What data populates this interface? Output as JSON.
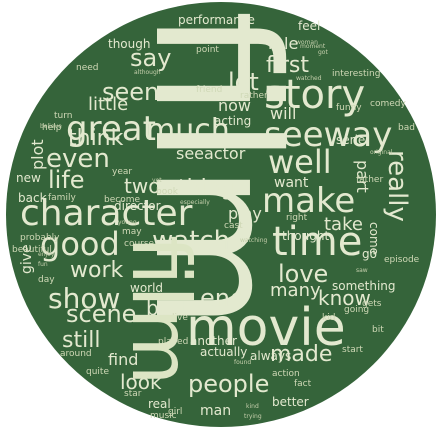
{
  "cloud": {
    "background_color": "#35643a",
    "word_color": "#e3e9cf",
    "words": {
      "film_large": "film",
      "film_mid": "film",
      "movie": "movie",
      "character": "character",
      "time": "time",
      "story": "story",
      "seeway": "seeway",
      "great": "great",
      "much": "much",
      "good": "good",
      "make": "make",
      "really": "really",
      "well": "well",
      "watch": "watch",
      "show": "show",
      "people": "people",
      "even": "even",
      "think": "think",
      "seen": "seen",
      "first": "first",
      "say": "say",
      "lot": "lot",
      "love": "love",
      "life": "life",
      "thing": "thing",
      "scene": "scene",
      "still": "still",
      "work": "work",
      "end": "end",
      "best": "best",
      "made": "made",
      "look": "look",
      "know": "know",
      "many": "many",
      "two": "two",
      "will": "will",
      "take": "take",
      "part": "part",
      "plot": "plot",
      "little": "little",
      "role": "role",
      "now": "now",
      "seeactor": "seeactor",
      "play": "play",
      "want": "want",
      "find": "find",
      "man": "man",
      "give": "give",
      "performance": "performance",
      "come": "come",
      "director": "director",
      "acting": "acting",
      "world": "world",
      "another": "another",
      "always": "always",
      "something": "something",
      "feel": "feel",
      "though": "though",
      "better": "better",
      "actually": "actually",
      "interesting": "interesting",
      "point": "point",
      "friend": "friend",
      "back": "back",
      "family": "family",
      "real": "real",
      "new": "new",
      "cast": "cast",
      "book": "book",
      "year": "year",
      "going": "going",
      "may": "may",
      "course": "course",
      "funny": "funny",
      "episode": "episode",
      "series": "serie",
      "comedy": "comedy",
      "kid": "kid",
      "start": "start",
      "fact": "fact",
      "action": "action",
      "star": "star",
      "quite": "quite",
      "become": "become",
      "right": "right",
      "thought": "thought",
      "especially": "especially",
      "turn": "turn",
      "need": "need",
      "help": "help",
      "live": "live",
      "played": "played",
      "day": "day",
      "around": "around",
      "probably": "probably",
      "beautiful": "beautiful",
      "girl": "girl",
      "music": "music",
      "father": "father",
      "gets": "gets",
      "bad": "bad",
      "bit": "bit",
      "watching": "watching",
      "original": "original",
      "got": "got",
      "moment": "moment",
      "rather": "rather",
      "yet": "yet",
      "go": "go",
      "saw": "saw",
      "kind": "kind",
      "trying": "trying",
      "although": "although",
      "woman": "woman",
      "found": "found",
      "believe": "believe",
      "enjoy": "enjoy",
      "fun": "fun",
      "young": "young",
      "watched": "watched"
    }
  }
}
